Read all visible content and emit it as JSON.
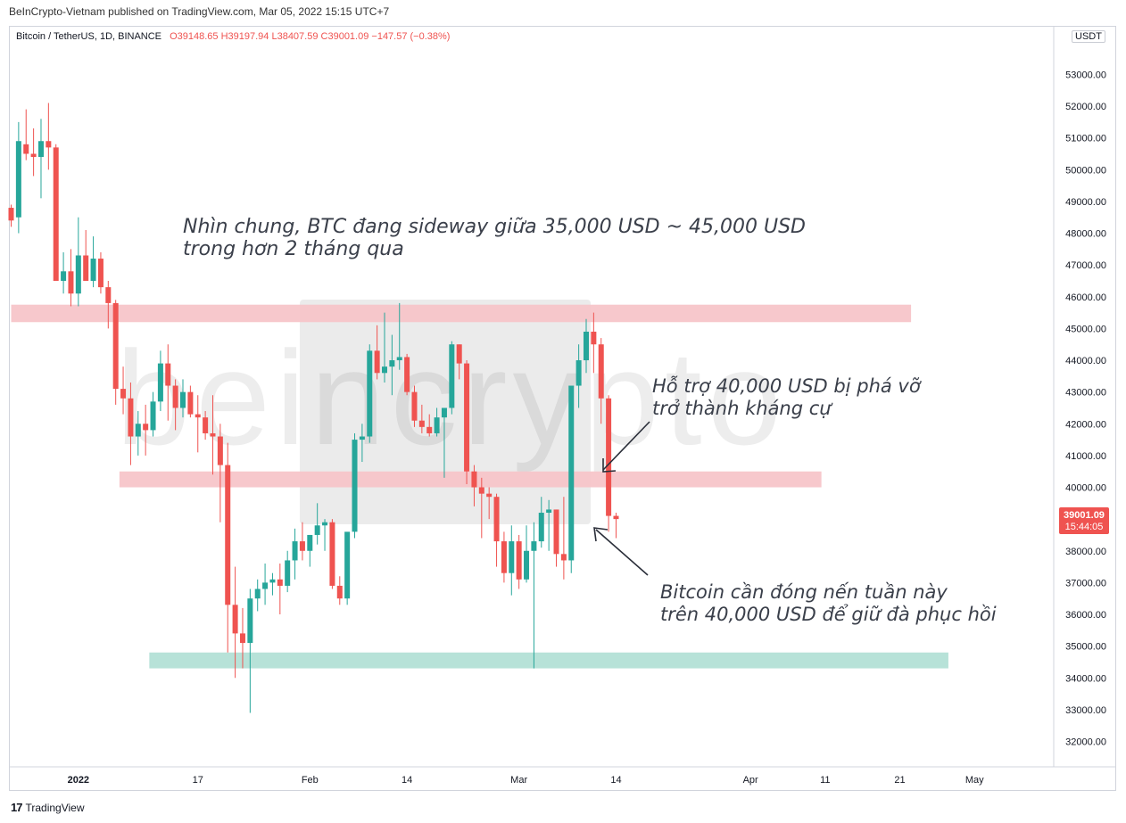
{
  "header": {
    "published": "BeInCrypto-Vietnam published on TradingView.com, Mar 05, 2022 15:15 UTC+7",
    "symbol": "Bitcoin / TetherUS, 1D, BINANCE",
    "ohlc": "O39148.65  H39197.94  L38407.59  C39001.09  −147.57 (−0.38%)",
    "currency": "USDT"
  },
  "footer": {
    "brand": "TradingView",
    "logo": "17"
  },
  "price_tag": {
    "price": "39001.09",
    "countdown": "15:44:05"
  },
  "watermark": "beincrypto",
  "annotations": [
    {
      "lines": [
        "Nhìn chung, BTC đang sideway giữa 35,000 USD ~ 45,000 USD",
        "trong hơn 2 tháng qua"
      ]
    },
    {
      "lines": [
        "Hỗ trợ 40,000 USD bị phá vỡ",
        "trở thành kháng cự"
      ]
    },
    {
      "lines": [
        "Bitcoin cần đóng nến tuần này",
        "trên 40,000 USD để giữ đà phục hồi"
      ]
    }
  ],
  "colors": {
    "up": "#26a69a",
    "down": "#ef5350",
    "resistance_zone": "#f7c5c9",
    "support_zone": "#b3e0d6"
  },
  "chart_data": {
    "type": "candlestick",
    "title": "Bitcoin / TetherUS, 1D, BINANCE",
    "ylim": [
      31200,
      54500
    ],
    "yticks": [
      32000,
      33000,
      34000,
      35000,
      36000,
      37000,
      38000,
      39000,
      40000,
      41000,
      42000,
      43000,
      44000,
      45000,
      46000,
      47000,
      48000,
      49000,
      50000,
      51000,
      52000,
      53000
    ],
    "xticks": [
      {
        "label": "2022",
        "i": 9
      },
      {
        "label": "17",
        "i": 25
      },
      {
        "label": "Feb",
        "i": 40
      },
      {
        "label": "14",
        "i": 53
      },
      {
        "label": "Mar",
        "i": 68
      },
      {
        "label": "14",
        "i": 81
      },
      {
        "label": "Apr",
        "i": 99
      },
      {
        "label": "11",
        "i": 109
      },
      {
        "label": "21",
        "i": 119
      },
      {
        "label": "May",
        "i": 129
      }
    ],
    "zones": [
      {
        "name": "resistance",
        "from_i": 0,
        "to_i": 120.5,
        "low": 45200,
        "high": 45750
      },
      {
        "name": "broken-support",
        "from_i": 14.5,
        "to_i": 108.5,
        "low": 40000,
        "high": 40500
      },
      {
        "name": "support",
        "from_i": 18.5,
        "to_i": 125.5,
        "low": 34300,
        "high": 34800
      }
    ],
    "candles": [
      [
        48800,
        48900,
        48200,
        48400
      ],
      [
        48500,
        51500,
        48000,
        50900
      ],
      [
        50800,
        51900,
        50300,
        50500
      ],
      [
        50500,
        51300,
        49800,
        50400
      ],
      [
        50400,
        51600,
        49100,
        50900
      ],
      [
        50900,
        52100,
        50000,
        50700
      ],
      [
        50700,
        50800,
        46700,
        46500
      ],
      [
        46500,
        47400,
        46100,
        46800
      ],
      [
        46800,
        47500,
        45700,
        46100
      ],
      [
        46100,
        48500,
        45700,
        47300
      ],
      [
        47300,
        48100,
        46600,
        46500
      ],
      [
        46500,
        47900,
        46300,
        47200
      ],
      [
        47200,
        47400,
        46100,
        46300
      ],
      [
        46300,
        46500,
        45000,
        45800
      ],
      [
        45800,
        45900,
        42600,
        43100
      ],
      [
        43100,
        43800,
        42300,
        42800
      ],
      [
        42800,
        43300,
        40700,
        41600
      ],
      [
        41600,
        42400,
        41000,
        42000
      ],
      [
        42000,
        42600,
        41000,
        41800
      ],
      [
        41800,
        43000,
        41600,
        42700
      ],
      [
        42700,
        44300,
        42400,
        43900
      ],
      [
        43900,
        44500,
        42100,
        43200
      ],
      [
        43200,
        43400,
        41800,
        42500
      ],
      [
        42500,
        43400,
        42200,
        43000
      ],
      [
        43000,
        43200,
        42200,
        42300
      ],
      [
        42300,
        42900,
        41100,
        42200
      ],
      [
        42200,
        42400,
        41500,
        41700
      ],
      [
        41700,
        42900,
        40400,
        41600
      ],
      [
        41600,
        42000,
        38900,
        40700
      ],
      [
        40700,
        41400,
        34800,
        36300
      ],
      [
        36300,
        37500,
        34000,
        35400
      ],
      [
        35400,
        36200,
        34300,
        35100
      ],
      [
        35100,
        36800,
        32900,
        36500
      ],
      [
        36500,
        37100,
        36100,
        36800
      ],
      [
        36800,
        37600,
        36300,
        37000
      ],
      [
        37000,
        37300,
        36600,
        37100
      ],
      [
        37100,
        37600,
        36000,
        36900
      ],
      [
        36900,
        38000,
        36700,
        37700
      ],
      [
        37700,
        38700,
        37100,
        38300
      ],
      [
        38300,
        38900,
        37700,
        38000
      ],
      [
        38000,
        38500,
        37500,
        38500
      ],
      [
        38500,
        39500,
        38200,
        38800
      ],
      [
        38800,
        39000,
        38000,
        38900
      ],
      [
        38900,
        39000,
        36800,
        36900
      ],
      [
        36900,
        37200,
        36300,
        36500
      ],
      [
        36500,
        38500,
        36300,
        38600
      ],
      [
        38600,
        41700,
        38400,
        41500
      ],
      [
        41500,
        42000,
        40800,
        41600
      ],
      [
        41600,
        44500,
        41400,
        44300
      ],
      [
        44300,
        45100,
        43400,
        43600
      ],
      [
        43600,
        45500,
        43300,
        43800
      ],
      [
        43800,
        44800,
        42900,
        44000
      ],
      [
        44000,
        45800,
        43700,
        44100
      ],
      [
        44100,
        44200,
        42900,
        43000
      ],
      [
        43000,
        43200,
        41900,
        42100
      ],
      [
        42100,
        42600,
        41700,
        41900
      ],
      [
        41900,
        42300,
        41600,
        41700
      ],
      [
        41700,
        42500,
        41600,
        42200
      ],
      [
        42200,
        42400,
        40300,
        42500
      ],
      [
        42500,
        44600,
        42300,
        44500
      ],
      [
        44500,
        44500,
        43400,
        43900
      ],
      [
        43900,
        44000,
        40100,
        40500
      ],
      [
        40500,
        40700,
        39400,
        40000
      ],
      [
        40000,
        40300,
        38400,
        39800
      ],
      [
        39800,
        40000,
        39000,
        39700
      ],
      [
        39700,
        39800,
        37500,
        38300
      ],
      [
        38300,
        38600,
        37000,
        37300
      ],
      [
        37300,
        38800,
        36600,
        38300
      ],
      [
        38300,
        38500,
        36800,
        37100
      ],
      [
        37100,
        38800,
        37000,
        38000
      ],
      [
        38000,
        38900,
        34300,
        38300
      ],
      [
        38300,
        39700,
        38100,
        39200
      ],
      [
        39200,
        39600,
        38000,
        39300
      ],
      [
        39300,
        39300,
        37500,
        37900
      ],
      [
        37900,
        39700,
        37100,
        37700
      ],
      [
        37700,
        43100,
        37300,
        43200
      ],
      [
        43200,
        44500,
        42500,
        44000
      ],
      [
        44000,
        45300,
        43600,
        44900
      ],
      [
        44900,
        45500,
        43600,
        44500
      ],
      [
        44500,
        44700,
        42000,
        42800
      ],
      [
        42800,
        42900,
        38600,
        39100
      ],
      [
        39100,
        39200,
        38400,
        39000
      ]
    ]
  }
}
